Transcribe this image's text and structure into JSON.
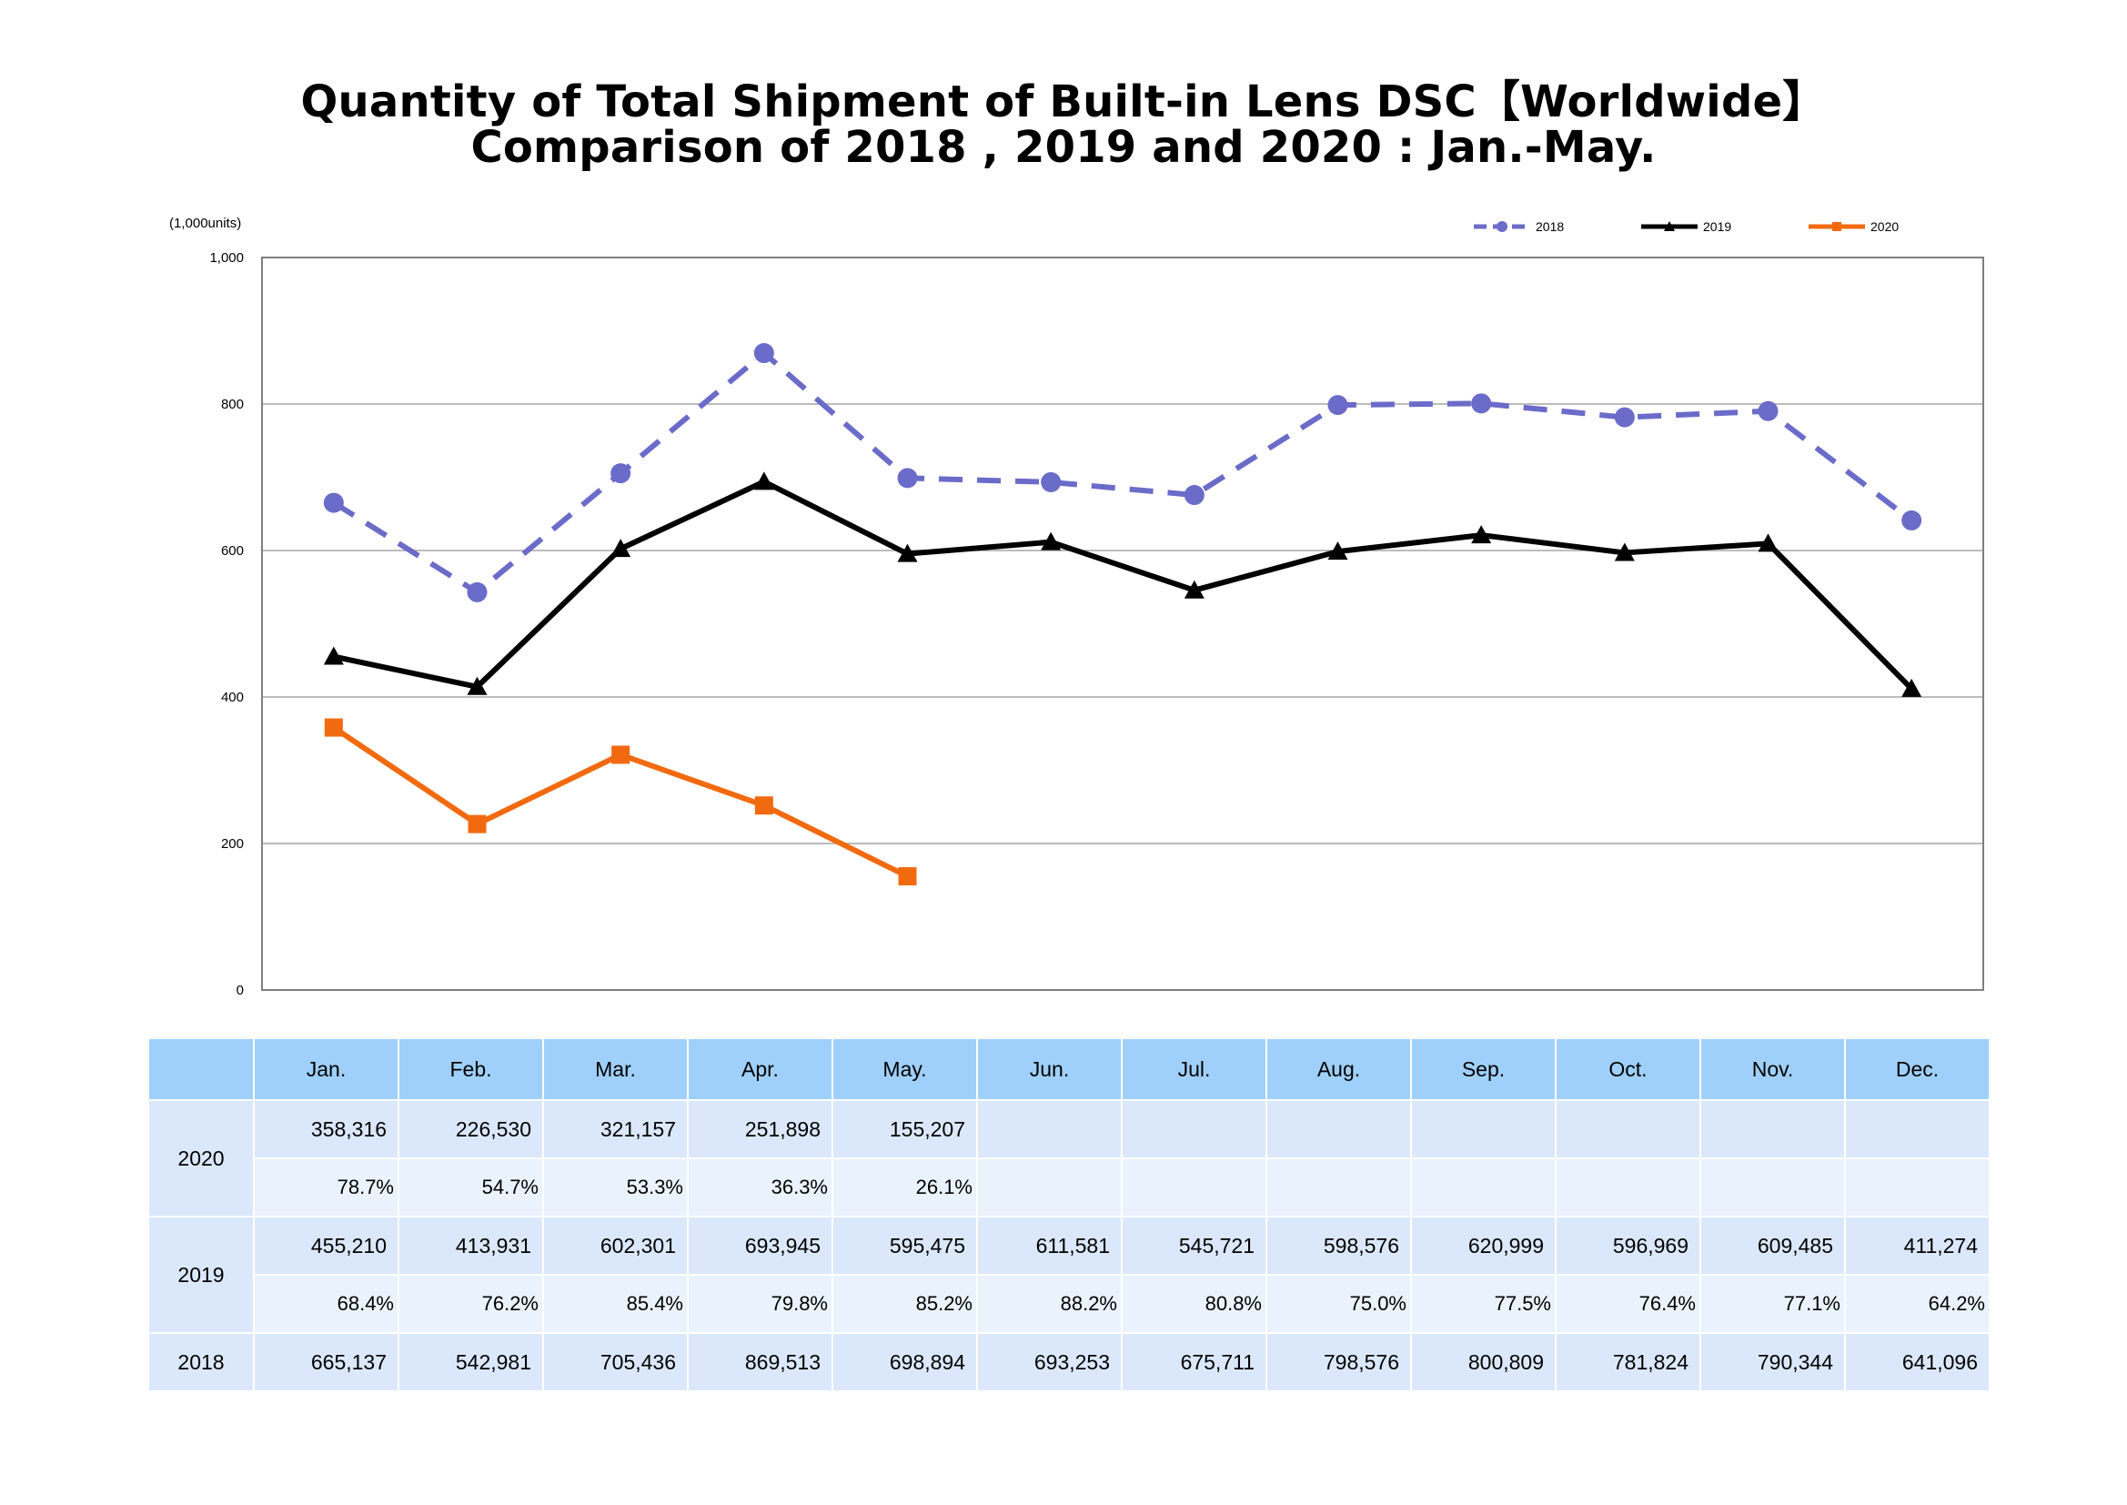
{
  "title": {
    "line1": "Quantity of Total Shipment of Built-in Lens DSC【Worldwide】",
    "line2": "Comparison of 2018 , 2019 and 2020 : Jan.-May."
  },
  "chart_data": {
    "type": "line",
    "unit_label": "(1,000units)",
    "x": [
      "Jan.",
      "Feb.",
      "Mar.",
      "Apr.",
      "May.",
      "Jun.",
      "Jul.",
      "Aug.",
      "Sep.",
      "Oct.",
      "Nov.",
      "Dec."
    ],
    "ylim": [
      0,
      1000
    ],
    "yticks": [
      0,
      200,
      400,
      600,
      800,
      1000
    ],
    "ytick_labels": [
      "0",
      "200",
      "400",
      "600",
      "800",
      "1,000"
    ],
    "grid": true,
    "legend_position": "top-right",
    "series": [
      {
        "name": "2018",
        "color": "#6b6bc9",
        "style": "dashed",
        "marker": "circle",
        "values": [
          665.137,
          542.981,
          705.436,
          869.513,
          698.894,
          693.253,
          675.711,
          798.576,
          800.809,
          781.824,
          790.344,
          641.096
        ]
      },
      {
        "name": "2019",
        "color": "#000000",
        "style": "solid",
        "marker": "triangle",
        "values": [
          455.21,
          413.931,
          602.301,
          693.945,
          595.475,
          611.581,
          545.721,
          598.576,
          620.999,
          596.969,
          609.485,
          411.274
        ]
      },
      {
        "name": "2020",
        "color": "#f26a10",
        "style": "solid",
        "marker": "square",
        "values": [
          358.316,
          226.53,
          321.157,
          251.898,
          155.207,
          null,
          null,
          null,
          null,
          null,
          null,
          null
        ]
      }
    ]
  },
  "table": {
    "months": [
      "Jan.",
      "Feb.",
      "Mar.",
      "Apr.",
      "May.",
      "Jun.",
      "Jul.",
      "Aug.",
      "Sep.",
      "Oct.",
      "Nov.",
      "Dec."
    ],
    "rows": [
      {
        "year": "2020",
        "values": [
          "358,316",
          "226,530",
          "321,157",
          "251,898",
          "155,207",
          "",
          "",
          "",
          "",
          "",
          "",
          ""
        ],
        "ratios": [
          "78.7%",
          "54.7%",
          "53.3%",
          "36.3%",
          "26.1%",
          "",
          "",
          "",
          "",
          "",
          "",
          ""
        ]
      },
      {
        "year": "2019",
        "values": [
          "455,210",
          "413,931",
          "602,301",
          "693,945",
          "595,475",
          "611,581",
          "545,721",
          "598,576",
          "620,999",
          "596,969",
          "609,485",
          "411,274"
        ],
        "ratios": [
          "68.4%",
          "76.2%",
          "85.4%",
          "79.8%",
          "85.2%",
          "88.2%",
          "80.8%",
          "75.0%",
          "77.5%",
          "76.4%",
          "77.1%",
          "64.2%"
        ]
      },
      {
        "year": "2018",
        "values": [
          "665,137",
          "542,981",
          "705,436",
          "869,513",
          "698,894",
          "693,253",
          "675,711",
          "798,576",
          "800,809",
          "781,824",
          "790,344",
          "641,096"
        ]
      }
    ]
  }
}
